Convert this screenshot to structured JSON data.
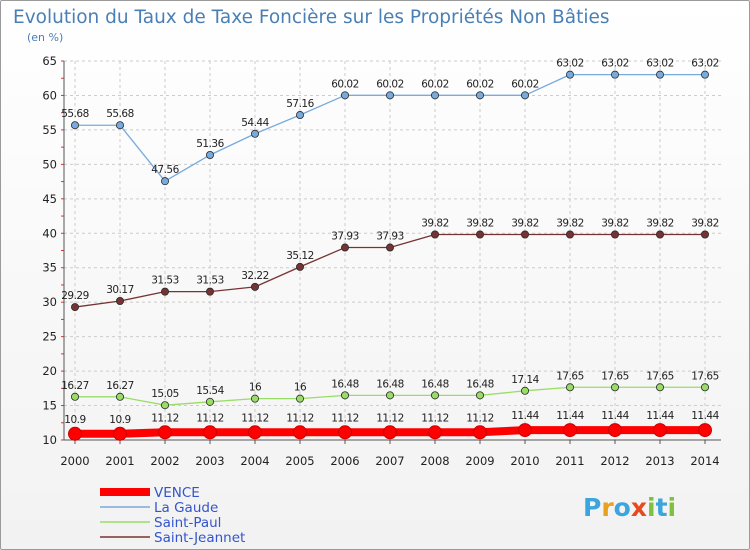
{
  "chart_data": {
    "type": "line",
    "title": "Evolution du Taux de Taxe Foncière sur les Propriétés Non Bâties",
    "ylabel": "(en %)",
    "xlabel": "",
    "ylim": [
      10,
      65
    ],
    "ytick_step": 5,
    "grid": true,
    "categories": [
      "2000",
      "2001",
      "2002",
      "2003",
      "2004",
      "2005",
      "2006",
      "2007",
      "2008",
      "2009",
      "2010",
      "2011",
      "2012",
      "2013",
      "2014"
    ],
    "series": [
      {
        "name": "VENCE",
        "color": "#ff0000",
        "values": [
          10.9,
          10.9,
          11.12,
          11.12,
          11.12,
          11.12,
          11.12,
          11.12,
          11.12,
          11.12,
          11.44,
          11.44,
          11.44,
          11.44,
          11.44
        ],
        "labels": [
          "10.9",
          "10.9",
          "11.12",
          "11.12",
          "11.12",
          "11.12",
          "11.12",
          "11.12",
          "11.12",
          "11.12",
          "11.44",
          "11.44",
          "11.44",
          "11.44",
          "11.44"
        ]
      },
      {
        "name": "La Gaude",
        "color": "#77aadd",
        "values": [
          55.68,
          55.68,
          47.56,
          51.36,
          54.44,
          57.16,
          60.02,
          60.02,
          60.02,
          60.02,
          60.02,
          63.02,
          63.02,
          63.02,
          63.02
        ],
        "labels": [
          "55.68",
          "55.68",
          "47.56",
          "51.36",
          "54.44",
          "57.16",
          "60.02",
          "60.02",
          "60.02",
          "60.02",
          "60.02",
          "63.02",
          "63.02",
          "63.02",
          "63.02"
        ]
      },
      {
        "name": "Saint-Paul",
        "color": "#99dd66",
        "values": [
          16.27,
          16.27,
          15.05,
          15.54,
          16,
          16,
          16.48,
          16.48,
          16.48,
          16.48,
          17.14,
          17.65,
          17.65,
          17.65,
          17.65
        ],
        "labels": [
          "16.27",
          "16.27",
          "15.05",
          "15.54",
          "16",
          "16",
          "16.48",
          "16.48",
          "16.48",
          "16.48",
          "17.14",
          "17.65",
          "17.65",
          "17.65",
          "17.65"
        ]
      },
      {
        "name": "Saint-Jeannet",
        "color": "#773333",
        "values": [
          29.29,
          30.17,
          31.53,
          31.53,
          32.22,
          35.12,
          37.93,
          37.93,
          39.82,
          39.82,
          39.82,
          39.82,
          39.82,
          39.82,
          39.82
        ],
        "labels": [
          "29.29",
          "30.17",
          "31.53",
          "31.53",
          "32.22",
          "35.12",
          "37.93",
          "37.93",
          "39.82",
          "39.82",
          "39.82",
          "39.82",
          "39.82",
          "39.82",
          "39.82"
        ]
      }
    ],
    "legend": [
      "VENCE",
      "La Gaude",
      "Saint-Paul",
      "Saint-Jeannet"
    ],
    "legend_position": "bottom-left"
  },
  "brand": {
    "letters": [
      "P",
      "r",
      "o",
      "x",
      "i",
      "t",
      "i"
    ],
    "colors": [
      "#3aa6dd",
      "#e8a020",
      "#3aa6dd",
      "#e84a20",
      "#80c040",
      "#3aa6dd",
      "#80c040"
    ]
  }
}
